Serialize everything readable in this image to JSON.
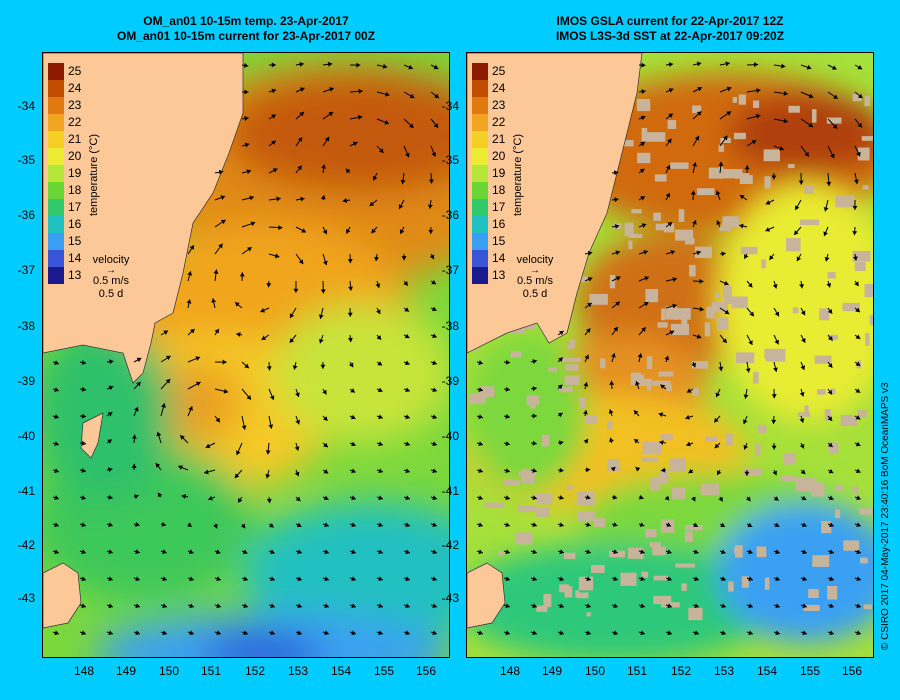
{
  "panels": [
    {
      "title_line1": "OM_an01 10-15m temp. 23-Apr-2017",
      "title_line2": "OM_an01 10-15m current for 23-Apr-2017 00Z"
    },
    {
      "title_line1": "IMOS GSLA current for 22-Apr-2017 12Z",
      "title_line2": "IMOS L3S-3d SST at 22-Apr-2017 09:20Z"
    }
  ],
  "legend": {
    "title": "temperature (°C)",
    "ticks": [
      "25",
      "24",
      "23",
      "22",
      "21",
      "20",
      "19",
      "18",
      "17",
      "16",
      "15",
      "14",
      "13"
    ],
    "colors": [
      "#8b1a00",
      "#c24d00",
      "#e07a10",
      "#f2a520",
      "#f5cf25",
      "#ecec33",
      "#b7e63a",
      "#6ad633",
      "#2fc86a",
      "#21c0c0",
      "#3a9ef2",
      "#3b55d8",
      "#1a1a8e"
    ],
    "velocity_label": "velocity",
    "velocity_speed": "0.5 m/s",
    "velocity_time": "0.5 d"
  },
  "axes": {
    "lat_labels": [
      "-34",
      "-35",
      "-36",
      "-37",
      "-38",
      "-39",
      "-40",
      "-41",
      "-42",
      "-43"
    ],
    "lon_labels": [
      "148",
      "149",
      "150",
      "151",
      "152",
      "153",
      "154",
      "155",
      "156"
    ]
  },
  "colors": {
    "background": "#00ccff",
    "land": "#fcc898",
    "cloud": "#c8b49b"
  },
  "credit": "© CSIRO 2017   04-May-2017 23:40:16 BoM OceanMAPS v3"
}
